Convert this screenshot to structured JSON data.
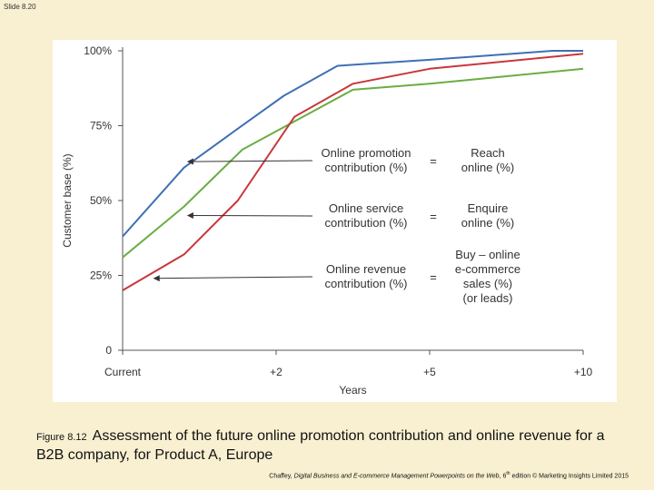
{
  "slide_label": "Slide 8.20",
  "caption": {
    "figure_label": "Figure 8.12",
    "text": "Assessment of the future online promotion contribution and online revenue for a B2B company, for Product A, Europe"
  },
  "credit": {
    "author": "Chaffey, ",
    "title": "Digital Business and E-commerce Management Powerpoints on the Web",
    "edition_pre": ", 6",
    "edition_sup": "th",
    "edition_post": " edition © Marketing Insights Limited 2015"
  },
  "colors": {
    "background": "#f9f0d2",
    "panel": "#ffffff",
    "axis": "#555555",
    "reach": "#3f6fb5",
    "enquire": "#6aad45",
    "buy": "#c8363a",
    "text": "#333333"
  },
  "chart_data": {
    "type": "line",
    "title": "",
    "xlabel": "Years",
    "ylabel": "Customer base (%)",
    "x_ticks": [
      "Current",
      "+2",
      "+5",
      "+10"
    ],
    "y_ticks": [
      "0",
      "25%",
      "50%",
      "75%",
      "100%"
    ],
    "ylim": [
      0,
      100
    ],
    "grid": false,
    "series": [
      {
        "name": "Reach online (%)",
        "color": "#3f6fb5",
        "points": [
          [
            0,
            38
          ],
          [
            0.4,
            61
          ],
          [
            0.75,
            74
          ],
          [
            1.05,
            85
          ],
          [
            1.4,
            95
          ],
          [
            2,
            97
          ],
          [
            2.8,
            100
          ],
          [
            3,
            100
          ]
        ]
      },
      {
        "name": "Enquire online (%)",
        "color": "#6aad45",
        "points": [
          [
            0,
            31
          ],
          [
            0.4,
            48
          ],
          [
            0.78,
            67
          ],
          [
            1.5,
            87
          ],
          [
            2,
            89
          ],
          [
            3,
            94
          ]
        ]
      },
      {
        "name": "Buy – online e-commerce sales (%) (or leads)",
        "color": "#c8363a",
        "points": [
          [
            0,
            20
          ],
          [
            0.4,
            32
          ],
          [
            0.75,
            50
          ],
          [
            1.12,
            78
          ],
          [
            1.5,
            89
          ],
          [
            2,
            94
          ],
          [
            3,
            99
          ]
        ]
      }
    ],
    "annotations": [
      {
        "left_lines": [
          "Online promotion",
          "contribution (%)"
        ],
        "equals": "=",
        "right_lines": [
          "Reach",
          "online (%)"
        ],
        "arrow_to": [
          0.4,
          63
        ]
      },
      {
        "left_lines": [
          "Online service",
          "contribution (%)"
        ],
        "equals": "=",
        "right_lines": [
          "Enquire",
          "online (%)"
        ],
        "arrow_to": [
          0.4,
          45
        ]
      },
      {
        "left_lines": [
          "Online revenue",
          "contribution (%)"
        ],
        "equals": "=",
        "right_lines": [
          "Buy – online",
          "e-commerce",
          "sales (%)",
          "(or leads)"
        ],
        "arrow_to": [
          0.18,
          24
        ]
      }
    ]
  }
}
